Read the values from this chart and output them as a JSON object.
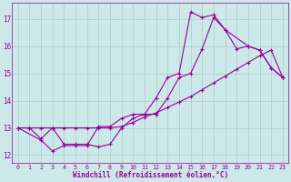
{
  "xlabel": "Windchill (Refroidissement éolien,°C)",
  "bg_color": "#cce8e8",
  "grid_color": "#aacccc",
  "line_color": "#990099",
  "xlim": [
    -0.5,
    23.5
  ],
  "ylim": [
    11.7,
    17.6
  ],
  "yticks": [
    12,
    13,
    14,
    15,
    16,
    17
  ],
  "xticks": [
    0,
    1,
    2,
    3,
    4,
    5,
    6,
    7,
    8,
    9,
    10,
    11,
    12,
    13,
    14,
    15,
    16,
    17,
    18,
    19,
    20,
    21,
    22,
    23
  ],
  "line1_x": [
    0,
    1,
    2,
    3,
    4,
    5,
    6,
    7,
    8,
    9,
    10,
    11,
    12,
    13,
    14,
    15,
    16,
    17,
    18,
    19,
    20,
    21,
    22,
    23
  ],
  "line1_y": [
    13.0,
    13.0,
    12.6,
    13.0,
    12.4,
    12.4,
    12.4,
    12.3,
    12.4,
    13.0,
    13.35,
    13.5,
    13.5,
    14.1,
    14.85,
    15.0,
    15.9,
    17.05,
    16.6,
    15.9,
    16.0,
    15.85,
    15.2,
    14.85
  ],
  "line2_x": [
    0,
    2,
    3,
    4,
    5,
    6,
    7,
    8,
    9,
    10,
    11,
    12,
    13,
    14,
    15,
    16,
    17,
    18,
    20,
    21,
    22,
    23
  ],
  "line2_y": [
    13.0,
    12.55,
    12.15,
    12.35,
    12.35,
    12.35,
    13.05,
    13.05,
    13.35,
    13.5,
    13.5,
    14.1,
    14.85,
    15.0,
    17.25,
    17.05,
    17.15,
    16.6,
    16.0,
    15.85,
    15.2,
    14.85
  ],
  "line3_x": [
    0,
    1,
    2,
    3,
    4,
    5,
    6,
    7,
    8,
    9,
    10,
    11,
    12,
    13,
    14,
    15,
    16,
    17,
    18,
    19,
    20,
    21,
    22,
    23
  ],
  "line3_y": [
    13.0,
    13.0,
    13.0,
    13.0,
    13.0,
    13.0,
    13.0,
    13.0,
    13.0,
    13.05,
    13.2,
    13.4,
    13.55,
    13.75,
    13.95,
    14.15,
    14.4,
    14.65,
    14.9,
    15.15,
    15.4,
    15.65,
    15.85,
    14.85
  ]
}
